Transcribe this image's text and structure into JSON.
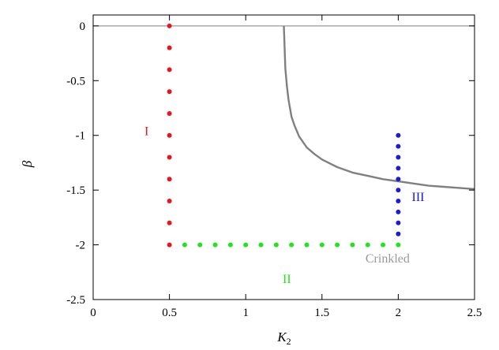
{
  "chart_data": {
    "type": "scatter",
    "xlabel": "K",
    "xlabel_sub": "2",
    "ylabel": "β",
    "xlim": [
      0,
      2.5
    ],
    "ylim": [
      -2.5,
      0.1
    ],
    "x_ticks": [
      0,
      0.5,
      1,
      1.5,
      2,
      2.5
    ],
    "x_tick_labels": [
      "0",
      "0.5",
      "1",
      "1.5",
      "2",
      "2.5"
    ],
    "y_ticks": [
      0,
      -0.5,
      -1,
      -1.5,
      -2,
      -2.5
    ],
    "y_tick_labels": [
      "0",
      "-0.5",
      "-1",
      "-1.5",
      "-2",
      "-2.5"
    ],
    "grid": false,
    "series": [
      {
        "color": "#e8141e",
        "x": [
          0.5,
          0.5,
          0.5,
          0.5,
          0.5,
          0.5,
          0.5,
          0.5,
          0.5,
          0.5,
          0.5
        ],
        "y": [
          0,
          -0.2,
          -0.4,
          -0.6,
          -0.8,
          -1.0,
          -1.2,
          -1.4,
          -1.6,
          -1.8,
          -2.0
        ]
      },
      {
        "color": "#22e31e",
        "x": [
          0.6,
          0.7,
          0.8,
          0.9,
          1.0,
          1.1,
          1.2,
          1.3,
          1.4,
          1.5,
          1.6,
          1.7,
          1.8,
          1.9,
          2.0
        ],
        "y": [
          -2,
          -2,
          -2,
          -2,
          -2,
          -2,
          -2,
          -2,
          -2,
          -2,
          -2,
          -2,
          -2,
          -2,
          -2
        ]
      },
      {
        "color": "#1a1adc",
        "x": [
          2,
          2,
          2,
          2,
          2,
          2,
          2,
          2,
          2,
          2
        ],
        "y": [
          -1.0,
          -1.1,
          -1.2,
          -1.3,
          -1.4,
          -1.5,
          -1.6,
          -1.7,
          -1.8,
          -1.9
        ]
      }
    ],
    "lines": [
      {
        "color": "#999999",
        "x": [
          0,
          2.5
        ],
        "y": [
          0,
          0
        ]
      },
      {
        "color": "#808080",
        "x": [
          1.25,
          1.26,
          1.27,
          1.28,
          1.3,
          1.32,
          1.35,
          1.4,
          1.45,
          1.5,
          1.6,
          1.7,
          1.8,
          1.9,
          2.0,
          2.1,
          2.2,
          2.3,
          2.4,
          2.5
        ],
        "y": [
          0,
          -0.39,
          -0.55,
          -0.67,
          -0.83,
          -0.91,
          -1.01,
          -1.11,
          -1.17,
          -1.22,
          -1.29,
          -1.34,
          -1.37,
          -1.4,
          -1.42,
          -1.44,
          -1.46,
          -1.47,
          -1.48,
          -1.49
        ]
      }
    ],
    "annotations": [
      {
        "text": "I",
        "x": 0.35,
        "y": -1.0,
        "color": "#e8141e"
      },
      {
        "text": "II",
        "x": 1.27,
        "y": -2.35,
        "color": "#22e31e"
      },
      {
        "text": "III",
        "x": 2.13,
        "y": -1.6,
        "color": "#1a1adc"
      },
      {
        "text": "Crinkled",
        "x": 1.93,
        "y": -2.16,
        "color": "#999999"
      }
    ]
  }
}
